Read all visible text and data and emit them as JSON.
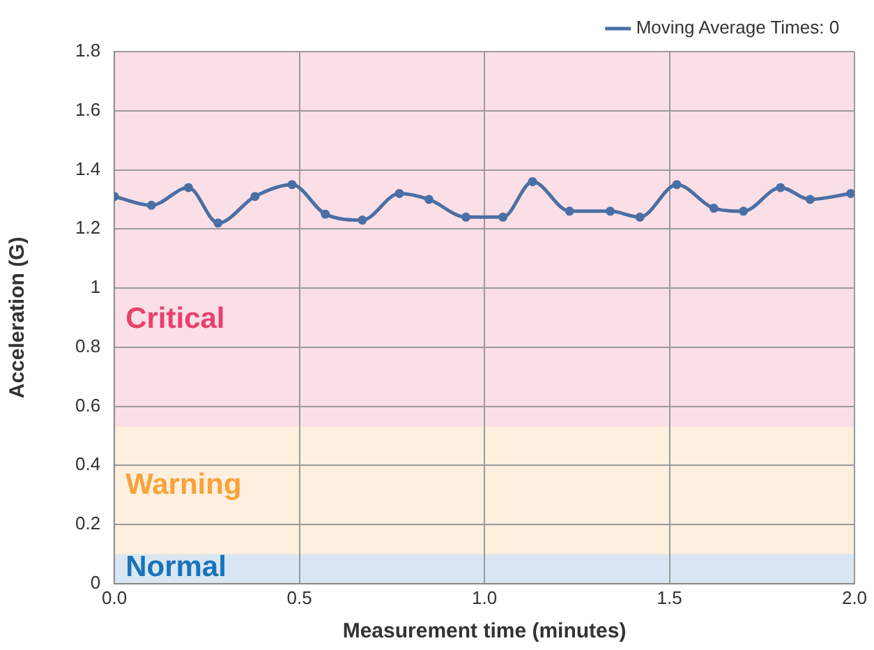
{
  "chart_data": {
    "type": "line",
    "xlabel": "Measurement time (minutes)",
    "ylabel": "Acceleration (G)",
    "series": [
      {
        "name": "Moving Average Times: 0",
        "color": "#4a6fa5",
        "x": [
          0,
          0.1,
          0.2,
          0.28,
          0.38,
          0.48,
          0.57,
          0.67,
          0.77,
          0.85,
          0.95,
          1.05,
          1.13,
          1.23,
          1.34,
          1.42,
          1.52,
          1.62,
          1.7,
          1.8,
          1.88,
          1.99
        ],
        "values": [
          1.31,
          1.28,
          1.34,
          1.22,
          1.31,
          1.35,
          1.25,
          1.23,
          1.32,
          1.3,
          1.24,
          1.24,
          1.36,
          1.26,
          1.26,
          1.24,
          1.35,
          1.27,
          1.26,
          1.34,
          1.3,
          1.32
        ]
      }
    ],
    "xlim": [
      0,
      2
    ],
    "xticks": [
      {
        "value": 0,
        "label": "0.0"
      },
      {
        "value": 0.5,
        "label": "0.5"
      },
      {
        "value": 1,
        "label": "1.0"
      },
      {
        "value": 1.5,
        "label": "1.5"
      },
      {
        "value": 2,
        "label": "2.0"
      }
    ],
    "ylim": [
      0,
      1.8
    ],
    "yticks": [
      0,
      0.2,
      0.4,
      0.6,
      0.8,
      1,
      1.2,
      1.4,
      1.6,
      1.8
    ],
    "bands": [
      {
        "axis": "y",
        "from": 0.53,
        "to": 1.8,
        "label": "Critical",
        "color": "#e8416a"
      },
      {
        "axis": "y",
        "from": 0.1,
        "to": 0.53,
        "label": "Warning",
        "color": "#f7a23a"
      },
      {
        "axis": "y",
        "from": 0,
        "to": 0.1,
        "label": "Normal",
        "color": "#1a73b8"
      }
    ],
    "grid": true,
    "legend": "top right",
    "marker": "circle",
    "line_style": "solid"
  }
}
